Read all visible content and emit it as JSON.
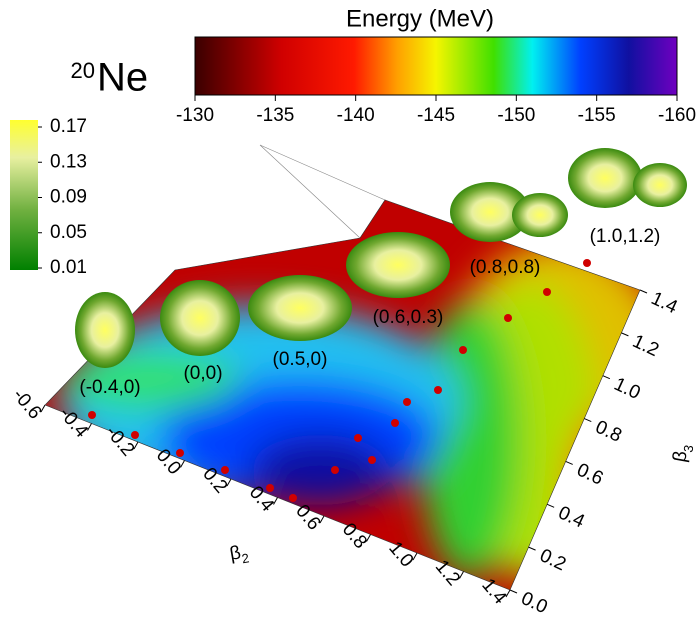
{
  "chart_data": {
    "type": "surface",
    "title_mass": "20",
    "title": "Ne",
    "colorbar": {
      "title": "Energy (MeV)",
      "lim": [
        -130,
        -160
      ],
      "ticks": [
        -130,
        -135,
        -140,
        -145,
        -150,
        -155,
        -160
      ]
    },
    "density_colorbar": {
      "lim": [
        0.01,
        0.17
      ],
      "ticks": [
        0.17,
        0.13,
        0.09,
        0.05,
        0.01
      ]
    },
    "x_label": "β",
    "x_label_sub": "2",
    "y_label": "β",
    "y_label_sub": "3",
    "xlim": [
      -0.6,
      1.4
    ],
    "xticks": [
      -0.6,
      -0.4,
      -0.2,
      {
        "value": 0,
        "label": "0.0"
      },
      0.2,
      0.4,
      0.6,
      0.8,
      {
        "value": 1,
        "label": "1.0"
      },
      1.2,
      1.4
    ],
    "ylim": [
      0,
      1.4
    ],
    "yticks": [
      {
        "value": 0,
        "label": "0.0"
      },
      0.2,
      0.4,
      0.6,
      0.8,
      {
        "value": 1,
        "label": "1.0"
      },
      1.2,
      1.4
    ],
    "shapes": [
      {
        "label": "(-0.4,0)"
      },
      {
        "label": "(0,0)"
      },
      {
        "label": "(0.5,0)"
      },
      {
        "label": "(0.6,0.3)"
      },
      {
        "label": "(0.8,0.8)"
      },
      {
        "label": "(1.0,1.2)"
      }
    ]
  }
}
